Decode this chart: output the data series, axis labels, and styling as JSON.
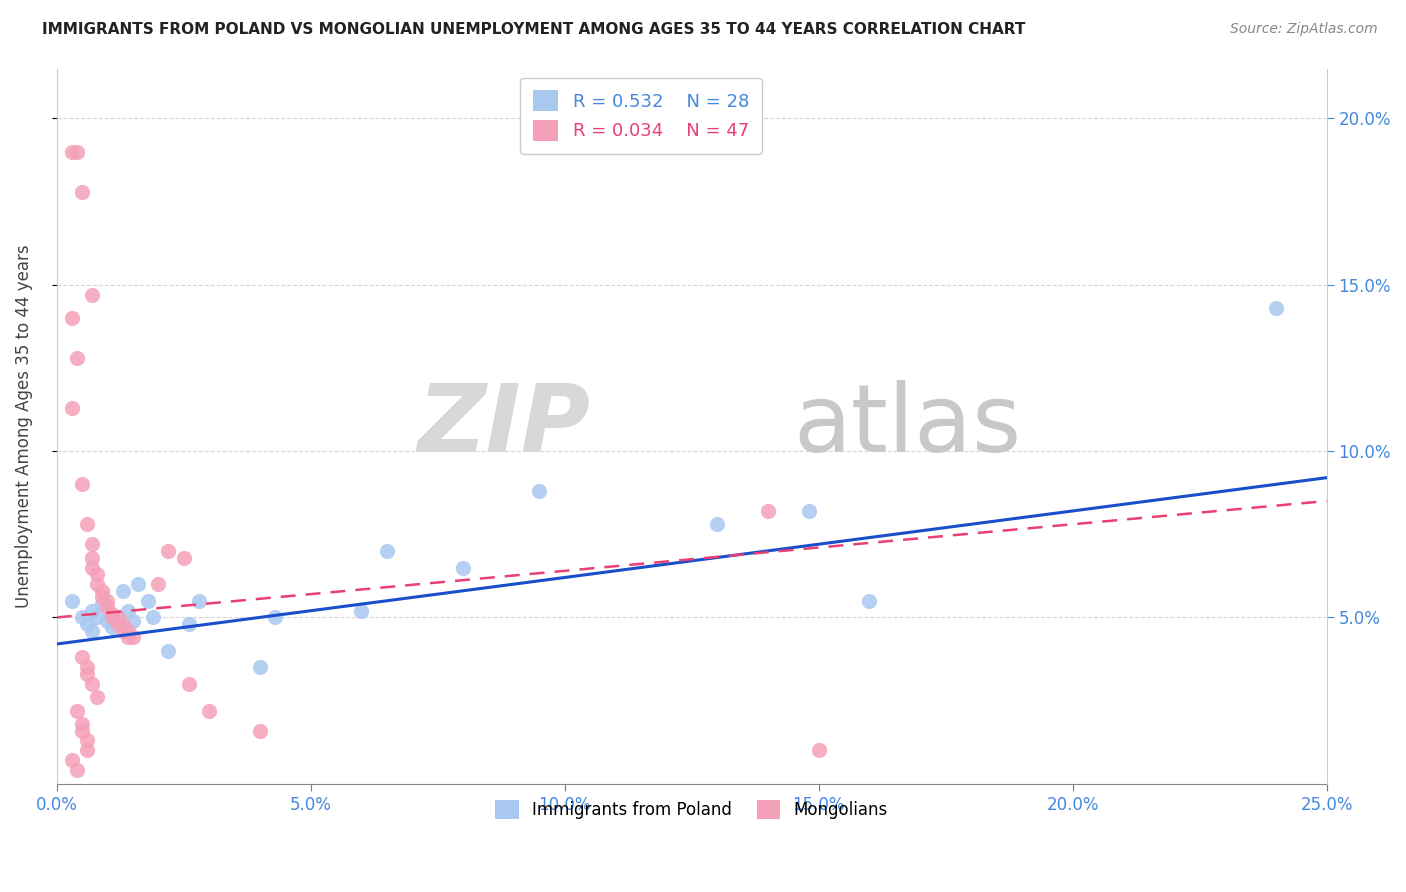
{
  "title": "IMMIGRANTS FROM POLAND VS MONGOLIAN UNEMPLOYMENT AMONG AGES 35 TO 44 YEARS CORRELATION CHART",
  "source": "Source: ZipAtlas.com",
  "xmin": 0.0,
  "xmax": 0.25,
  "ymin": 0.0,
  "ymax": 0.215,
  "ylabel": "Unemployment Among Ages 35 to 44 years",
  "legend_blue_label": "Immigrants from Poland",
  "legend_pink_label": "Mongolians",
  "r_blue": "0.532",
  "n_blue": "28",
  "r_pink": "0.034",
  "n_pink": "47",
  "blue_color": "#a8c8f0",
  "pink_color": "#f4a0b8",
  "blue_line_color": "#1a4fcc",
  "pink_line_color": "#e84070",
  "watermark_zip": "ZIP",
  "watermark_atlas": "atlas",
  "blue_scatter": [
    [
      0.003,
      0.055
    ],
    [
      0.005,
      0.05
    ],
    [
      0.006,
      0.048
    ],
    [
      0.007,
      0.052
    ],
    [
      0.007,
      0.046
    ],
    [
      0.008,
      0.05
    ],
    [
      0.009,
      0.054
    ],
    [
      0.01,
      0.049
    ],
    [
      0.011,
      0.047
    ],
    [
      0.013,
      0.058
    ],
    [
      0.014,
      0.052
    ],
    [
      0.015,
      0.049
    ],
    [
      0.016,
      0.06
    ],
    [
      0.018,
      0.055
    ],
    [
      0.019,
      0.05
    ],
    [
      0.022,
      0.04
    ],
    [
      0.026,
      0.048
    ],
    [
      0.028,
      0.055
    ],
    [
      0.04,
      0.035
    ],
    [
      0.043,
      0.05
    ],
    [
      0.06,
      0.052
    ],
    [
      0.065,
      0.07
    ],
    [
      0.08,
      0.065
    ],
    [
      0.095,
      0.088
    ],
    [
      0.13,
      0.078
    ],
    [
      0.148,
      0.082
    ],
    [
      0.16,
      0.055
    ],
    [
      0.24,
      0.143
    ]
  ],
  "pink_scatter": [
    [
      0.003,
      0.19
    ],
    [
      0.004,
      0.19
    ],
    [
      0.005,
      0.178
    ],
    [
      0.007,
      0.147
    ],
    [
      0.003,
      0.14
    ],
    [
      0.004,
      0.128
    ],
    [
      0.003,
      0.113
    ],
    [
      0.005,
      0.09
    ],
    [
      0.006,
      0.078
    ],
    [
      0.007,
      0.072
    ],
    [
      0.007,
      0.068
    ],
    [
      0.007,
      0.065
    ],
    [
      0.008,
      0.063
    ],
    [
      0.008,
      0.06
    ],
    [
      0.009,
      0.058
    ],
    [
      0.009,
      0.056
    ],
    [
      0.01,
      0.055
    ],
    [
      0.01,
      0.053
    ],
    [
      0.011,
      0.051
    ],
    [
      0.011,
      0.05
    ],
    [
      0.012,
      0.05
    ],
    [
      0.012,
      0.048
    ],
    [
      0.013,
      0.048
    ],
    [
      0.013,
      0.046
    ],
    [
      0.014,
      0.046
    ],
    [
      0.014,
      0.044
    ],
    [
      0.015,
      0.044
    ],
    [
      0.005,
      0.038
    ],
    [
      0.006,
      0.035
    ],
    [
      0.006,
      0.033
    ],
    [
      0.007,
      0.03
    ],
    [
      0.008,
      0.026
    ],
    [
      0.004,
      0.022
    ],
    [
      0.005,
      0.018
    ],
    [
      0.005,
      0.016
    ],
    [
      0.006,
      0.013
    ],
    [
      0.006,
      0.01
    ],
    [
      0.003,
      0.007
    ],
    [
      0.004,
      0.004
    ],
    [
      0.022,
      0.07
    ],
    [
      0.025,
      0.068
    ],
    [
      0.026,
      0.03
    ],
    [
      0.03,
      0.022
    ],
    [
      0.04,
      0.016
    ],
    [
      0.14,
      0.082
    ],
    [
      0.15,
      0.01
    ],
    [
      0.02,
      0.06
    ]
  ]
}
